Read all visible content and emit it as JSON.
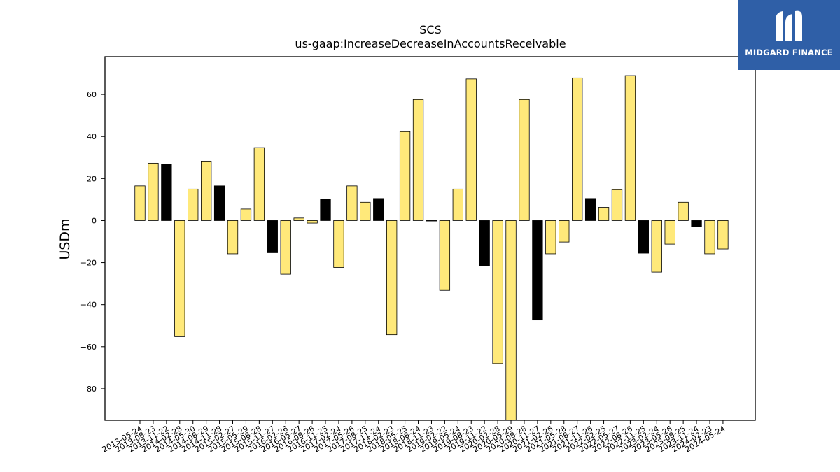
{
  "logo": {
    "text": "MIDGARD FINANCE",
    "mark_icon": "midgard-monogram-icon",
    "background": "#2f5fa7"
  },
  "chart_data": {
    "type": "bar",
    "title": "SCS",
    "subtitle": "us-gaap:IncreaseDecreaseInAccountsReceivable",
    "xlabel": "",
    "ylabel": "USDm",
    "ylim": [
      -95,
      78
    ],
    "yticks": [
      60,
      40,
      20,
      0,
      -20,
      -40,
      -60,
      -80
    ],
    "ytick_labels": [
      "60",
      "40",
      "20",
      "0",
      "−20",
      "−40",
      "−60",
      "−80"
    ],
    "grid": false,
    "colors": {
      "standard": "#ffe97a",
      "highlight": "#000000",
      "edge": "#000000"
    },
    "categories": [
      "2013-05-24",
      "2013-08-23",
      "2013-11-22",
      "2014-02-28",
      "2014-05-30",
      "2014-08-29",
      "2014-11-28",
      "2015-02-27",
      "2015-05-29",
      "2015-08-28",
      "2015-11-27",
      "2016-02-26",
      "2016-05-27",
      "2016-08-26",
      "2016-11-25",
      "2017-02-24",
      "2017-05-26",
      "2017-08-25",
      "2017-11-24",
      "2018-02-23",
      "2018-05-25",
      "2018-08-24",
      "2018-11-23",
      "2019-02-22",
      "2019-05-24",
      "2019-08-23",
      "2019-11-22",
      "2020-02-28",
      "2020-05-29",
      "2020-08-28",
      "2020-11-27",
      "2021-02-26",
      "2021-05-28",
      "2021-08-27",
      "2021-11-26",
      "2022-02-25",
      "2022-05-27",
      "2022-08-26",
      "2022-11-25",
      "2023-02-24",
      "2023-05-26",
      "2023-08-25",
      "2023-11-24",
      "2024-02-23",
      "2024-05-24"
    ],
    "values": [
      16.5,
      27.3,
      26.8,
      -55.2,
      15.0,
      28.3,
      16.5,
      -15.8,
      5.5,
      34.7,
      -15.3,
      -25.5,
      1.2,
      -1.2,
      10.2,
      -22.3,
      16.5,
      8.7,
      10.5,
      -54.3,
      42.3,
      57.6,
      0.0,
      -33.2,
      15.0,
      67.4,
      -21.5,
      -68.0,
      -95.0,
      57.6,
      -47.3,
      -15.8,
      -10.2,
      67.9,
      10.5,
      6.3,
      14.7,
      69.0,
      -15.5,
      -24.5,
      -11.2,
      8.7,
      -3.0,
      -15.8,
      -13.5
    ],
    "highlight": [
      false,
      false,
      true,
      false,
      false,
      false,
      true,
      false,
      false,
      false,
      true,
      false,
      false,
      false,
      true,
      false,
      false,
      false,
      true,
      false,
      false,
      false,
      true,
      false,
      false,
      false,
      true,
      false,
      false,
      false,
      true,
      false,
      false,
      false,
      true,
      false,
      false,
      false,
      true,
      false,
      false,
      false,
      true,
      false,
      false
    ]
  }
}
